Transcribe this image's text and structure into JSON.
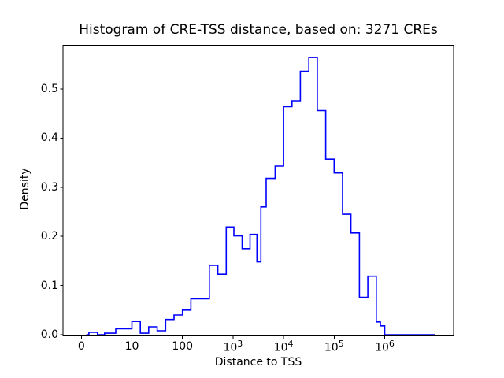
{
  "figure": {
    "window_background": "#ffffff"
  },
  "chart_data": {
    "type": "bar",
    "subtype": "step-histogram",
    "title": "Histogram of CRE-TSS distance, based on: 3271 CREs",
    "xlabel": "Distance to TSS",
    "ylabel": "Density",
    "x_scale": "symlog",
    "grid": false,
    "legend": false,
    "n_cres": 3271,
    "ylim": [
      0,
      0.59
    ],
    "line_color": "#0000ff",
    "axis_color": "#000000",
    "y_ticks": [
      {
        "text": "0.0",
        "value": 0.0
      },
      {
        "text": "0.1",
        "value": 0.1
      },
      {
        "text": "0.2",
        "value": 0.2
      },
      {
        "text": "0.3",
        "value": 0.3
      },
      {
        "text": "0.4",
        "value": 0.4
      },
      {
        "text": "0.5",
        "value": 0.5
      }
    ],
    "x_ticks": [
      {
        "text": "0",
        "value": 0
      },
      {
        "text": "10",
        "value": 10
      },
      {
        "text": "100",
        "value": 100
      },
      {
        "base": "10",
        "sup": "3",
        "value": 1000
      },
      {
        "base": "10",
        "sup": "4",
        "value": 10000
      },
      {
        "base": "10",
        "sup": "5",
        "value": 100000
      },
      {
        "base": "10",
        "sup": "6",
        "value": 1000000
      }
    ],
    "bin_edges": [
      1,
      1.5,
      3.2,
      4.6,
      6.8,
      10,
      14.7,
      21.5,
      31.6,
      46.4,
      68.1,
      100,
      147,
      340,
      500,
      735,
      1040,
      1515,
      2170,
      2980,
      3560,
      4530,
      6810,
      10000,
      14700,
      21500,
      31600,
      46400,
      68100,
      100000,
      147000,
      215000,
      316000,
      464000,
      681000,
      822000,
      1000000,
      10000000
    ],
    "densities": [
      0,
      0.005,
      0,
      0.003,
      0.012,
      0.027,
      0.003,
      0.016,
      0.008,
      0.031,
      0.04,
      0.05,
      0.073,
      0.141,
      0.123,
      0.219,
      0.201,
      0.175,
      0.204,
      0.148,
      0.26,
      0.318,
      0.343,
      0.464,
      0.476,
      0.536,
      0.564,
      0.456,
      0.357,
      0.329,
      0.245,
      0.207,
      0.076,
      0.119,
      0.026,
      0.018,
      0
    ]
  }
}
